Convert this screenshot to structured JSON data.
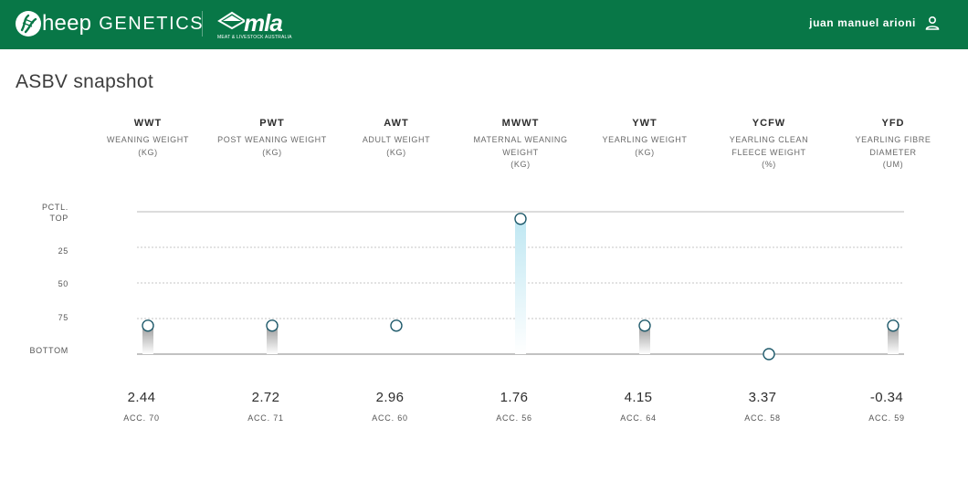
{
  "header": {
    "brand_word": "heep",
    "brand_genetics": "GENETICS",
    "mla_logo_text": "mla",
    "mla_subtitle": "MEAT & LIVESTOCK AUSTRALIA",
    "user_name": "juan manuel arioni",
    "user_icon": "person-icon",
    "colors": {
      "bar": "#087747"
    }
  },
  "page": {
    "title": "ASBV snapshot"
  },
  "axis": {
    "labels": [
      "PCTL.",
      "TOP",
      "25",
      "50",
      "75",
      "BOTTOM"
    ]
  },
  "traits": [
    {
      "code": "WWT",
      "name": "WEANING WEIGHT",
      "name2": "",
      "unit": "(KG)",
      "value": "2.44",
      "acc": "ACC. 70",
      "percentile": 80,
      "highlight": false
    },
    {
      "code": "PWT",
      "name": "POST WEANING WEIGHT",
      "name2": "",
      "unit": "(KG)",
      "value": "2.72",
      "acc": "ACC. 71",
      "percentile": 80,
      "highlight": false
    },
    {
      "code": "AWT",
      "name": "ADULT WEIGHT",
      "name2": "",
      "unit": "(KG)",
      "value": "2.96",
      "acc": "ACC. 60",
      "percentile": 80,
      "highlight": false
    },
    {
      "code": "MWWT",
      "name": "MATERNAL WEANING",
      "name2": "WEIGHT",
      "unit": "(KG)",
      "value": "1.76",
      "acc": "ACC. 56",
      "percentile": 5,
      "highlight": true
    },
    {
      "code": "YWT",
      "name": "YEARLING WEIGHT",
      "name2": "",
      "unit": "(KG)",
      "value": "4.15",
      "acc": "ACC. 64",
      "percentile": 80,
      "highlight": false
    },
    {
      "code": "YCFW",
      "name": "YEARLING CLEAN",
      "name2": "FLEECE WEIGHT",
      "unit": "(%)",
      "value": "3.37",
      "acc": "ACC. 58",
      "percentile": 100,
      "highlight": false
    },
    {
      "code": "YFD",
      "name": "YEARLING FIBRE",
      "name2": "DIAMETER",
      "unit": "(UM)",
      "value": "-0.34",
      "acc": "ACC. 59",
      "percentile": 80,
      "highlight": false
    }
  ],
  "colors": {
    "brand_green": "#087747",
    "highlight_bar": "#bfe7f2",
    "marker_stroke": "#1f5a6b",
    "neutral_bar": "#9a9a9a"
  }
}
